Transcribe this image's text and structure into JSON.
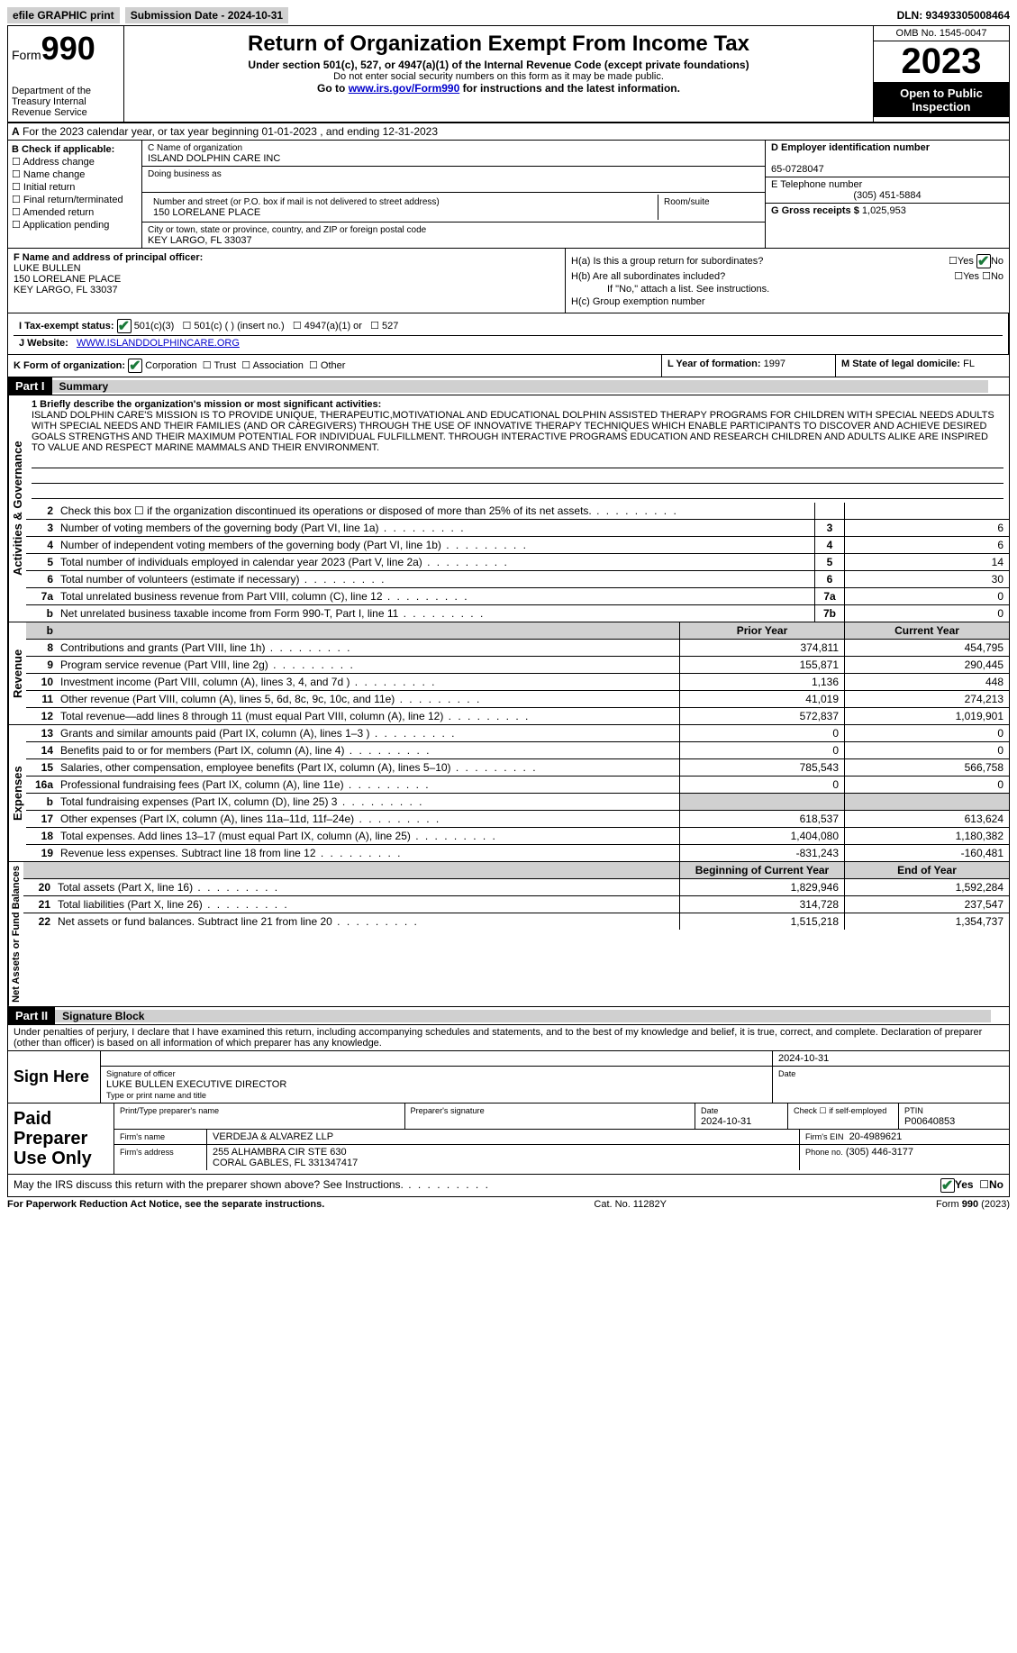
{
  "topbar": {
    "efile": "efile GRAPHIC print",
    "submission": "Submission Date - 2024-10-31",
    "dln": "DLN: 93493305008464"
  },
  "header": {
    "form_prefix": "Form",
    "form_num": "990",
    "dept": "Department of the Treasury Internal Revenue Service",
    "title": "Return of Organization Exempt From Income Tax",
    "sub1": "Under section 501(c), 527, or 4947(a)(1) of the Internal Revenue Code (except private foundations)",
    "sub2": "Do not enter social security numbers on this form as it may be made public.",
    "sub3_prefix": "Go to ",
    "sub3_link": "www.irs.gov/Form990",
    "sub3_suffix": " for instructions and the latest information.",
    "omb": "OMB No. 1545-0047",
    "year": "2023",
    "inspection": "Open to Public Inspection"
  },
  "a": "For the 2023 calendar year, or tax year beginning 01-01-2023   , and ending 12-31-2023",
  "b": {
    "heading": "B Check if applicable:",
    "items": [
      "Address change",
      "Name change",
      "Initial return",
      "Final return/terminated",
      "Amended return",
      "Application pending"
    ]
  },
  "c": {
    "name_label": "C Name of organization",
    "name": "ISLAND DOLPHIN CARE INC",
    "dba_label": "Doing business as",
    "dba": "",
    "addr_label": "Number and street (or P.O. box if mail is not delivered to street address)",
    "addr": "150 LORELANE PLACE",
    "room_label": "Room/suite",
    "room": "",
    "city_label": "City or town, state or province, country, and ZIP or foreign postal code",
    "city": "KEY LARGO, FL  33037"
  },
  "d": {
    "ein_label": "D Employer identification number",
    "ein": "65-0728047",
    "phone_label": "E Telephone number",
    "phone": "(305) 451-5884",
    "gross_label": "G Gross receipts $",
    "gross": "1,025,953"
  },
  "f": {
    "label": "F  Name and address of principal officer:",
    "name": "LUKE BULLEN",
    "addr1": "150 LORELANE PLACE",
    "addr2": "KEY LARGO, FL  33037"
  },
  "h": {
    "a_label": "H(a)  Is this a group return for subordinates?",
    "b_label": "H(b)  Are all subordinates included?",
    "b_note": "If \"No,\" attach a list. See instructions.",
    "c_label": "H(c)  Group exemption number",
    "yes": "Yes",
    "no": "No"
  },
  "i": {
    "label": "I   Tax-exempt status:",
    "opt1": "501(c)(3)",
    "opt2": "501(c) (  ) (insert no.)",
    "opt3": "4947(a)(1) or",
    "opt4": "527"
  },
  "j": {
    "label": "J   Website:",
    "url": "WWW.ISLANDDOLPHINCARE.ORG"
  },
  "k": {
    "label": "K Form of organization:",
    "o1": "Corporation",
    "o2": "Trust",
    "o3": "Association",
    "o4": "Other"
  },
  "l": {
    "label": "L Year of formation:",
    "val": "1997"
  },
  "m": {
    "label": "M State of legal domicile:",
    "val": "FL"
  },
  "part1": {
    "hdr": "Part I",
    "title": "Summary"
  },
  "mission": {
    "label": "1  Briefly describe the organization's mission or most significant activities:",
    "text": "ISLAND DOLPHIN CARE'S MISSION IS TO PROVIDE UNIQUE, THERAPEUTIC,MOTIVATIONAL AND EDUCATIONAL DOLPHIN ASSISTED THERAPY PROGRAMS FOR CHILDREN WITH SPECIAL NEEDS ADULTS WITH SPECIAL NEEDS AND THEIR FAMILIES (AND OR CAREGIVERS) THROUGH THE USE OF INNOVATIVE THERAPY TECHNIQUES WHICH ENABLE PARTICIPANTS TO DISCOVER AND ACHIEVE DESIRED GOALS STRENGTHS AND THEIR MAXIMUM POTENTIAL FOR INDIVIDUAL FULFILLMENT. THROUGH INTERACTIVE PROGRAMS EDUCATION AND RESEARCH CHILDREN AND ADULTS ALIKE ARE INSPIRED TO VALUE AND RESPECT MARINE MAMMALS AND THEIR ENVIRONMENT."
  },
  "summary_rows": [
    {
      "n": "2",
      "d": "Check this box  ☐  if the organization discontinued its operations or disposed of more than 25% of its net assets.",
      "box": "",
      "v": ""
    },
    {
      "n": "3",
      "d": "Number of voting members of the governing body (Part VI, line 1a)",
      "box": "3",
      "v": "6"
    },
    {
      "n": "4",
      "d": "Number of independent voting members of the governing body (Part VI, line 1b)",
      "box": "4",
      "v": "6"
    },
    {
      "n": "5",
      "d": "Total number of individuals employed in calendar year 2023 (Part V, line 2a)",
      "box": "5",
      "v": "14"
    },
    {
      "n": "6",
      "d": "Total number of volunteers (estimate if necessary)",
      "box": "6",
      "v": "30"
    },
    {
      "n": "7a",
      "d": "Total unrelated business revenue from Part VIII, column (C), line 12",
      "box": "7a",
      "v": "0"
    },
    {
      "n": "b",
      "d": "Net unrelated business taxable income from Form 990-T, Part I, line 11",
      "box": "7b",
      "v": "0"
    }
  ],
  "summary_side": "Activities & Governance",
  "revenue_side": "Revenue",
  "revenue_hdr": {
    "prior": "Prior Year",
    "current": "Current Year"
  },
  "revenue_rows": [
    {
      "n": "8",
      "d": "Contributions and grants (Part VIII, line 1h)",
      "p": "374,811",
      "c": "454,795"
    },
    {
      "n": "9",
      "d": "Program service revenue (Part VIII, line 2g)",
      "p": "155,871",
      "c": "290,445"
    },
    {
      "n": "10",
      "d": "Investment income (Part VIII, column (A), lines 3, 4, and 7d )",
      "p": "1,136",
      "c": "448"
    },
    {
      "n": "11",
      "d": "Other revenue (Part VIII, column (A), lines 5, 6d, 8c, 9c, 10c, and 11e)",
      "p": "41,019",
      "c": "274,213"
    },
    {
      "n": "12",
      "d": "Total revenue—add lines 8 through 11 (must equal Part VIII, column (A), line 12)",
      "p": "572,837",
      "c": "1,019,901"
    }
  ],
  "expenses_side": "Expenses",
  "expenses_rows": [
    {
      "n": "13",
      "d": "Grants and similar amounts paid (Part IX, column (A), lines 1–3 )",
      "p": "0",
      "c": "0"
    },
    {
      "n": "14",
      "d": "Benefits paid to or for members (Part IX, column (A), line 4)",
      "p": "0",
      "c": "0"
    },
    {
      "n": "15",
      "d": "Salaries, other compensation, employee benefits (Part IX, column (A), lines 5–10)",
      "p": "785,543",
      "c": "566,758"
    },
    {
      "n": "16a",
      "d": "Professional fundraising fees (Part IX, column (A), line 11e)",
      "p": "0",
      "c": "0"
    },
    {
      "n": "b",
      "d": "Total fundraising expenses (Part IX, column (D), line 25) 3",
      "p": "",
      "c": "",
      "shade": true
    },
    {
      "n": "17",
      "d": "Other expenses (Part IX, column (A), lines 11a–11d, 11f–24e)",
      "p": "618,537",
      "c": "613,624"
    },
    {
      "n": "18",
      "d": "Total expenses. Add lines 13–17 (must equal Part IX, column (A), line 25)",
      "p": "1,404,080",
      "c": "1,180,382"
    },
    {
      "n": "19",
      "d": "Revenue less expenses. Subtract line 18 from line 12",
      "p": "-831,243",
      "c": "-160,481"
    }
  ],
  "net_side": "Net Assets or Fund Balances",
  "net_hdr": {
    "prior": "Beginning of Current Year",
    "current": "End of Year"
  },
  "net_rows": [
    {
      "n": "20",
      "d": "Total assets (Part X, line 16)",
      "p": "1,829,946",
      "c": "1,592,284"
    },
    {
      "n": "21",
      "d": "Total liabilities (Part X, line 26)",
      "p": "314,728",
      "c": "237,547"
    },
    {
      "n": "22",
      "d": "Net assets or fund balances. Subtract line 21 from line 20",
      "p": "1,515,218",
      "c": "1,354,737"
    }
  ],
  "part2": {
    "hdr": "Part II",
    "title": "Signature Block"
  },
  "perjury": "Under penalties of perjury, I declare that I have examined this return, including accompanying schedules and statements, and to the best of my knowledge and belief, it is true, correct, and complete. Declaration of preparer (other than officer) is based on all information of which preparer has any knowledge.",
  "sign": {
    "here": "Sign Here",
    "date": "2024-10-31",
    "sig_label": "Signature of officer",
    "name": "LUKE BULLEN  EXECUTIVE DIRECTOR",
    "name_label": "Type or print name and title",
    "date_label": "Date"
  },
  "paid": {
    "label": "Paid Preparer Use Only",
    "preparer_name_label": "Print/Type preparer's name",
    "preparer_sig_label": "Preparer's signature",
    "date_label": "Date",
    "date": "2024-10-31",
    "self_label": "Check ☐ if self-employed",
    "ptin_label": "PTIN",
    "ptin": "P00640853",
    "firm_name_label": "Firm's name",
    "firm_name": "VERDEJA & ALVAREZ LLP",
    "firm_ein_label": "Firm's EIN",
    "firm_ein": "20-4989621",
    "firm_addr_label": "Firm's address",
    "firm_addr1": "255 ALHAMBRA CIR STE 630",
    "firm_addr2": "CORAL GABLES, FL  331347417",
    "phone_label": "Phone no.",
    "phone": "(305) 446-3177"
  },
  "discuss": {
    "q": "May the IRS discuss this return with the preparer shown above? See Instructions.",
    "yes": "Yes",
    "no": "No"
  },
  "footer": {
    "left": "For Paperwork Reduction Act Notice, see the separate instructions.",
    "mid": "Cat. No. 11282Y",
    "right": "Form 990 (2023)"
  }
}
